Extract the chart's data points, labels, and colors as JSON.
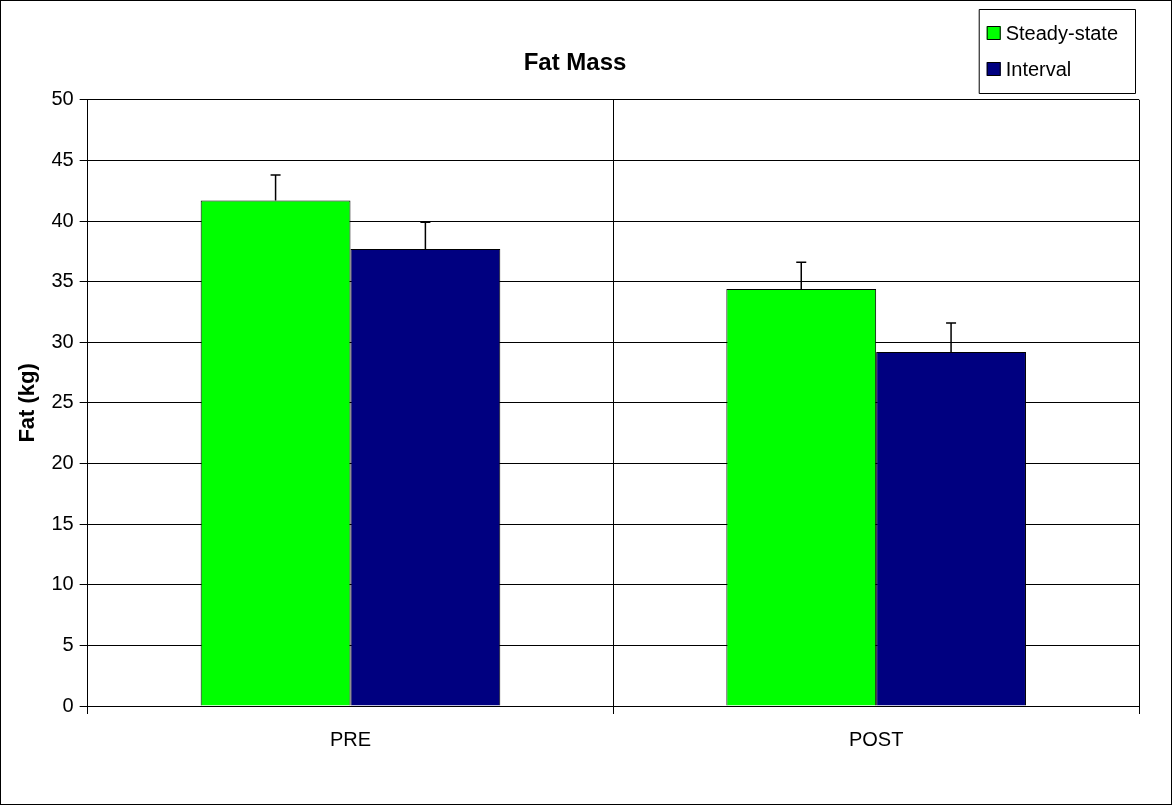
{
  "chart_data": {
    "type": "bar",
    "title": "Fat Mass",
    "ylabel": "Fat (kg)",
    "categories": [
      "PRE",
      "POST"
    ],
    "series": [
      {
        "name": "Steady-state",
        "color": "#00ff00",
        "values": [
          41.7,
          34.4
        ],
        "errors": [
          [
            41.7,
            43.8
          ],
          [
            34.4,
            36.6
          ]
        ]
      },
      {
        "name": "Interval",
        "color": "#000080",
        "values": [
          37.7,
          29.2
        ],
        "errors": [
          [
            37.7,
            39.9
          ],
          [
            29.2,
            31.6
          ]
        ]
      }
    ],
    "ylim": [
      0,
      50
    ],
    "yticks": [
      0,
      5,
      10,
      15,
      20,
      25,
      30,
      35,
      40,
      45,
      50
    ],
    "grid": true,
    "legend": "top right"
  }
}
